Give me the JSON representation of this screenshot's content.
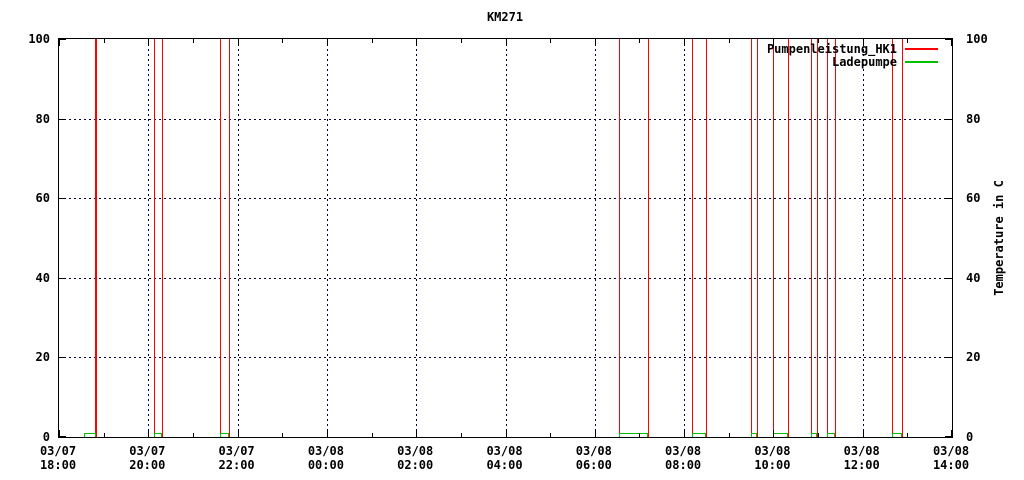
{
  "title": "KM271",
  "colors": {
    "series_pumpenleistung": "#ff0000",
    "series_ladepumpe": "#00c000",
    "grid": "#000033",
    "axis": "#000000",
    "background": "#ffffff",
    "text": "#000000"
  },
  "legend": {
    "entries": [
      {
        "label": "Pumpenleistung_HK1",
        "color": "#ff0000"
      },
      {
        "label": "Ladepumpe",
        "color": "#00c000"
      }
    ]
  },
  "chart_data": {
    "type": "line",
    "title": "KM271",
    "grid": true,
    "legend_position": "top-right-inside",
    "x_axis": {
      "start": "03/07 18:00",
      "end": "03/08 14:00",
      "range_minutes": 1200,
      "major_tick_every_min": 120,
      "minor_tick_every_min": 60,
      "ticks": [
        {
          "date": "03/07",
          "time": "18:00",
          "offset_min": 0
        },
        {
          "date": "03/07",
          "time": "20:00",
          "offset_min": 120
        },
        {
          "date": "03/07",
          "time": "22:00",
          "offset_min": 240
        },
        {
          "date": "03/08",
          "time": "00:00",
          "offset_min": 360
        },
        {
          "date": "03/08",
          "time": "02:00",
          "offset_min": 480
        },
        {
          "date": "03/08",
          "time": "04:00",
          "offset_min": 600
        },
        {
          "date": "03/08",
          "time": "06:00",
          "offset_min": 720
        },
        {
          "date": "03/08",
          "time": "08:00",
          "offset_min": 840
        },
        {
          "date": "03/08",
          "time": "10:00",
          "offset_min": 960
        },
        {
          "date": "03/08",
          "time": "12:00",
          "offset_min": 1080
        },
        {
          "date": "03/08",
          "time": "14:00",
          "offset_min": 1200
        }
      ]
    },
    "y_axis": {
      "title": "Temperature in C",
      "min": 0,
      "max": 100,
      "ticks": [
        0,
        20,
        40,
        60,
        80,
        100
      ],
      "labels_on": "both-sides"
    },
    "series": [
      {
        "name": "Pumpenleistung_HK1",
        "color": "#ff0000",
        "style": "square-pulse",
        "low": 0,
        "high": 100,
        "pulses": [
          {
            "start": "03/07 18:49",
            "end": "03/07 18:50",
            "start_min": 49,
            "end_min": 50
          },
          {
            "start": "03/07 20:07",
            "end": "03/07 20:18",
            "start_min": 127,
            "end_min": 138
          },
          {
            "start": "03/07 21:37",
            "end": "03/07 21:49",
            "start_min": 217,
            "end_min": 229
          },
          {
            "start": "03/08 06:32",
            "end": "03/08 07:11",
            "start_min": 752,
            "end_min": 791
          },
          {
            "start": "03/08 08:11",
            "end": "03/08 08:29",
            "start_min": 851,
            "end_min": 869
          },
          {
            "start": "03/08 09:30",
            "end": "03/08 09:38",
            "start_min": 930,
            "end_min": 938
          },
          {
            "start": "03/08 09:59",
            "end": "03/08 10:19",
            "start_min": 959,
            "end_min": 979
          },
          {
            "start": "03/08 10:51",
            "end": "03/08 10:58",
            "start_min": 1011,
            "end_min": 1018
          },
          {
            "start": "03/08 11:12",
            "end": "03/08 11:23",
            "start_min": 1032,
            "end_min": 1043
          },
          {
            "start": "03/08 12:40",
            "end": "03/08 12:53",
            "start_min": 1120,
            "end_min": 1133
          }
        ]
      },
      {
        "name": "Ladepumpe",
        "color": "#00c000",
        "style": "square-pulse",
        "low": 0,
        "high": 1,
        "pulses": [
          {
            "start": "03/07 18:33",
            "end": "03/07 18:50",
            "start_min": 33,
            "end_min": 50
          },
          {
            "start": "03/07 20:07",
            "end": "03/07 20:18",
            "start_min": 127,
            "end_min": 138
          },
          {
            "start": "03/07 21:37",
            "end": "03/07 21:49",
            "start_min": 217,
            "end_min": 229
          },
          {
            "start": "03/08 06:32",
            "end": "03/08 07:11",
            "start_min": 752,
            "end_min": 791
          },
          {
            "start": "03/08 08:11",
            "end": "03/08 08:29",
            "start_min": 851,
            "end_min": 869
          },
          {
            "start": "03/08 09:30",
            "end": "03/08 09:38",
            "start_min": 930,
            "end_min": 938
          },
          {
            "start": "03/08 09:59",
            "end": "03/08 10:19",
            "start_min": 959,
            "end_min": 979
          },
          {
            "start": "03/08 10:51",
            "end": "03/08 10:58",
            "start_min": 1011,
            "end_min": 1018
          },
          {
            "start": "03/08 11:12",
            "end": "03/08 11:23",
            "start_min": 1032,
            "end_min": 1043
          },
          {
            "start": "03/08 12:40",
            "end": "03/08 12:53",
            "start_min": 1120,
            "end_min": 1133
          }
        ]
      }
    ]
  }
}
